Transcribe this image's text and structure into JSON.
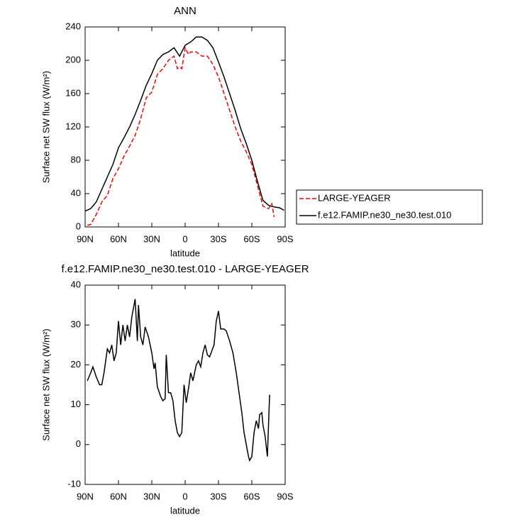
{
  "chart_data": [
    {
      "type": "line",
      "title": "ANN",
      "xlabel": "latitude",
      "ylabel": "Surface net SW flux (W/m²)",
      "xlim": [
        90,
        -90
      ],
      "ylim": [
        0,
        240
      ],
      "xticks": [
        {
          "value": 90,
          "label": "90N"
        },
        {
          "value": 60,
          "label": "60N"
        },
        {
          "value": 30,
          "label": "30N"
        },
        0,
        {
          "value": -30,
          "label": "30S"
        },
        {
          "value": -60,
          "label": "60S"
        },
        {
          "value": -90,
          "label": "90S"
        }
      ],
      "yticks": [
        0,
        40,
        80,
        120,
        160,
        200,
        240
      ],
      "legend": "right",
      "series": [
        {
          "name": "LARGE-YEAGER",
          "color": "#ff0000",
          "style": "dashed",
          "x": [
            88,
            85,
            80,
            75,
            70,
            65,
            60,
            55,
            50,
            45,
            40,
            35,
            30,
            25,
            20,
            15,
            10,
            7,
            5,
            3,
            0,
            -3,
            -5,
            -10,
            -15,
            -20,
            -25,
            -30,
            -35,
            -40,
            -45,
            -50,
            -55,
            -60,
            -65,
            -70,
            -75,
            -78,
            -80
          ],
          "values": [
            2,
            3,
            15,
            30,
            38,
            58,
            70,
            85,
            97,
            110,
            130,
            155,
            162,
            183,
            190,
            200,
            205,
            190,
            192,
            190,
            215,
            207,
            210,
            210,
            205,
            205,
            195,
            180,
            160,
            140,
            120,
            103,
            90,
            75,
            50,
            25,
            22,
            28,
            12
          ]
        },
        {
          "name": "f.e12.FAMIP.ne30_ne30.test.010",
          "color": "#000000",
          "style": "solid",
          "x": [
            90,
            85,
            80,
            75,
            70,
            65,
            60,
            55,
            50,
            45,
            40,
            35,
            30,
            25,
            20,
            15,
            10,
            5,
            0,
            -5,
            -10,
            -15,
            -20,
            -25,
            -30,
            -35,
            -40,
            -45,
            -50,
            -55,
            -60,
            -65,
            -70,
            -75,
            -80,
            -85,
            -89
          ],
          "values": [
            19,
            22,
            30,
            45,
            60,
            75,
            95,
            107,
            120,
            135,
            152,
            170,
            184,
            200,
            207,
            210,
            215,
            205,
            218,
            222,
            228,
            228,
            224,
            215,
            198,
            180,
            160,
            140,
            118,
            100,
            80,
            55,
            32,
            26,
            24,
            23,
            20
          ]
        }
      ]
    },
    {
      "type": "line",
      "title": "f.e12.FAMIP.ne30_ne30.test.010 - LARGE-YEAGER",
      "xlabel": "latitude",
      "ylabel": "Surface net SW flux (W/m²)",
      "xlim": [
        90,
        -90
      ],
      "ylim": [
        -10,
        40
      ],
      "xticks": [
        {
          "value": 90,
          "label": "90N"
        },
        {
          "value": 60,
          "label": "60N"
        },
        {
          "value": 30,
          "label": "30N"
        },
        0,
        {
          "value": -30,
          "label": "30S"
        },
        {
          "value": -60,
          "label": "60S"
        },
        {
          "value": -90,
          "label": "90S"
        }
      ],
      "yticks": [
        -10,
        0,
        10,
        20,
        30,
        40
      ],
      "series": [
        {
          "color": "#000000",
          "style": "solid",
          "x": [
            88,
            85,
            83,
            80,
            77,
            75,
            73,
            70,
            68,
            66,
            64,
            62,
            60,
            58,
            56,
            54,
            52,
            50,
            48,
            45,
            43,
            42,
            40,
            38,
            36,
            33,
            30,
            28,
            27,
            25,
            22,
            20,
            18,
            17,
            15,
            13,
            11,
            9,
            7,
            5,
            3,
            1,
            -1,
            -3,
            -5,
            -7,
            -10,
            -12,
            -14,
            -16,
            -18,
            -20,
            -22,
            -24,
            -26,
            -28,
            -30,
            -32,
            -35,
            -37,
            -40,
            -43,
            -46,
            -48,
            -51,
            -53,
            -55,
            -57,
            -58,
            -60,
            -62,
            -64,
            -66,
            -67,
            -69,
            -70,
            -72,
            -74,
            -76
          ],
          "values": [
            16,
            18,
            19.5,
            17,
            15,
            15,
            18,
            24,
            23,
            25,
            21,
            23,
            31,
            25,
            30,
            26,
            30,
            27,
            32,
            36.5,
            26,
            35,
            27,
            25,
            29.5,
            27,
            23,
            19,
            20.5,
            14.5,
            12,
            11,
            11.5,
            22.5,
            13,
            13,
            11,
            6,
            3,
            2,
            3,
            15,
            10.5,
            14,
            18,
            16,
            20,
            21,
            19.5,
            23,
            25,
            22.5,
            22,
            23.5,
            25,
            31,
            33.5,
            29,
            29,
            28.5,
            26,
            23,
            18,
            14,
            8,
            3,
            0,
            -3,
            -4,
            -3,
            3,
            6,
            4,
            7.5,
            8,
            5,
            2,
            -3,
            12.5
          ]
        }
      ]
    }
  ]
}
